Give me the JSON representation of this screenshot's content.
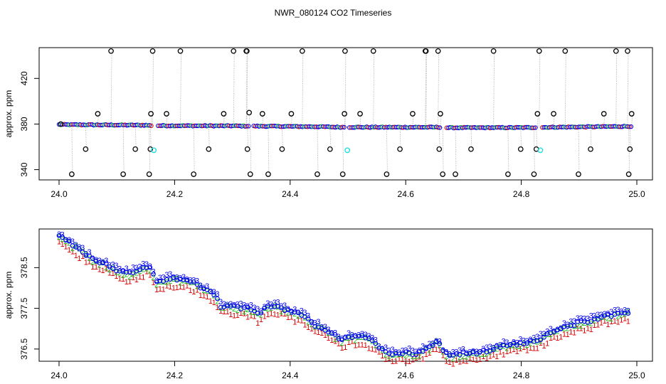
{
  "title": "NWR_080124  CO2 Timeseries",
  "colors": {
    "outlier": "#000000",
    "trace": "#a0a0a0",
    "series1": "#d40000",
    "series2": "#22bb22",
    "series3": "#0000ee",
    "flagged": "#22dddd",
    "axis": "#000000"
  },
  "chart_data": [
    {
      "type": "scatter",
      "ylabel": "approx. ppm",
      "xlim": [
        24.0,
        25.0
      ],
      "ylim": [
        331,
        447
      ],
      "xticks": [
        24.0,
        24.2,
        24.4,
        24.6,
        24.8,
        25.0
      ],
      "yticks": [
        340,
        380,
        420
      ],
      "ytick_labels": [
        "340",
        "380",
        "420"
      ],
      "baseline": [
        [
          24.0,
          379.5
        ],
        [
          24.15,
          379.0
        ],
        [
          24.16,
          378.6
        ],
        [
          24.3,
          378.4
        ],
        [
          24.33,
          378.2
        ],
        [
          24.45,
          377.7
        ],
        [
          24.48,
          377.3
        ],
        [
          24.55,
          377.2
        ],
        [
          24.66,
          377.2
        ],
        [
          24.67,
          376.8
        ],
        [
          24.8,
          376.9
        ],
        [
          24.85,
          377.2
        ],
        [
          24.99,
          378.0
        ]
      ],
      "outliers_x": [
        24.003,
        24.022,
        24.046,
        24.067,
        24.09,
        24.111,
        24.132,
        24.156,
        24.158,
        24.159,
        24.162,
        24.186,
        24.21,
        24.233,
        24.259,
        24.285,
        24.302,
        24.324,
        24.325,
        24.326,
        24.329,
        24.331,
        24.352,
        24.362,
        24.386,
        24.402,
        24.421,
        24.447,
        24.469,
        24.491,
        24.494,
        24.495,
        24.521,
        24.544,
        24.567,
        24.59,
        24.612,
        24.634,
        24.635,
        24.656,
        24.658,
        24.66,
        24.664,
        24.686,
        24.713,
        24.752,
        24.777,
        24.799,
        24.822,
        24.826,
        24.828,
        24.831,
        24.856,
        24.876,
        24.899,
        24.92,
        24.943,
        24.964,
        24.984,
        24.986,
        24.988,
        24.991
      ],
      "outliers_y": [
        380,
        336,
        358,
        389,
        444,
        336,
        358,
        336,
        358,
        389,
        444,
        389,
        444,
        336,
        358,
        389,
        444,
        444,
        444,
        358,
        390,
        336,
        389,
        336,
        358,
        389,
        444,
        336,
        358,
        336,
        389,
        444,
        389,
        444,
        336,
        358,
        389,
        444,
        444,
        444,
        358,
        389,
        336,
        336,
        358,
        444,
        336,
        358,
        336,
        358,
        389,
        444,
        389,
        444,
        336,
        358,
        389,
        444,
        444,
        336,
        358,
        389
      ],
      "flagged_x": [
        24.164,
        24.499,
        24.833
      ],
      "flagged_y": [
        357,
        357,
        357
      ]
    },
    {
      "type": "scatter",
      "ylabel": "approx. ppm",
      "xlim": [
        24.0,
        25.0
      ],
      "ylim": [
        376.2,
        379.45
      ],
      "xticks": [
        24.0,
        24.2,
        24.4,
        24.6,
        24.8,
        25.0
      ],
      "yticks": [
        376.5,
        377.5,
        378.5
      ],
      "ytick_labels": [
        "376.5",
        "377.5",
        "378.5"
      ],
      "series_labels": [
        "1",
        "2",
        "3"
      ],
      "x_range": [
        24.0,
        24.985
      ],
      "trend": [
        [
          24.0,
          379.25
        ],
        [
          24.02,
          379.1
        ],
        [
          24.04,
          378.9
        ],
        [
          24.06,
          378.7
        ],
        [
          24.08,
          378.6
        ],
        [
          24.1,
          378.45
        ],
        [
          24.12,
          378.35
        ],
        [
          24.14,
          378.45
        ],
        [
          24.155,
          378.55
        ],
        [
          24.17,
          378.1
        ],
        [
          24.19,
          378.25
        ],
        [
          24.21,
          378.2
        ],
        [
          24.23,
          378.15
        ],
        [
          24.25,
          378.0
        ],
        [
          24.27,
          377.85
        ],
        [
          24.28,
          377.55
        ],
        [
          24.3,
          377.55
        ],
        [
          24.32,
          377.5
        ],
        [
          24.33,
          377.5
        ],
        [
          24.345,
          377.35
        ],
        [
          24.36,
          377.55
        ],
        [
          24.38,
          377.55
        ],
        [
          24.4,
          377.4
        ],
        [
          24.42,
          377.35
        ],
        [
          24.44,
          377.1
        ],
        [
          24.46,
          377.0
        ],
        [
          24.48,
          376.8
        ],
        [
          24.49,
          376.7
        ],
        [
          24.5,
          376.8
        ],
        [
          24.53,
          376.8
        ],
        [
          24.55,
          376.6
        ],
        [
          24.57,
          376.4
        ],
        [
          24.6,
          376.4
        ],
        [
          24.62,
          376.4
        ],
        [
          24.64,
          376.55
        ],
        [
          24.655,
          376.7
        ],
        [
          24.665,
          376.45
        ],
        [
          24.68,
          376.35
        ],
        [
          24.7,
          376.4
        ],
        [
          24.72,
          376.4
        ],
        [
          24.74,
          376.45
        ],
        [
          24.76,
          376.55
        ],
        [
          24.78,
          376.6
        ],
        [
          24.8,
          376.65
        ],
        [
          24.82,
          376.7
        ],
        [
          24.84,
          376.8
        ],
        [
          24.86,
          376.95
        ],
        [
          24.88,
          377.05
        ],
        [
          24.9,
          377.15
        ],
        [
          24.92,
          377.2
        ],
        [
          24.94,
          377.3
        ],
        [
          24.96,
          377.35
        ],
        [
          24.985,
          377.4
        ]
      ]
    }
  ]
}
